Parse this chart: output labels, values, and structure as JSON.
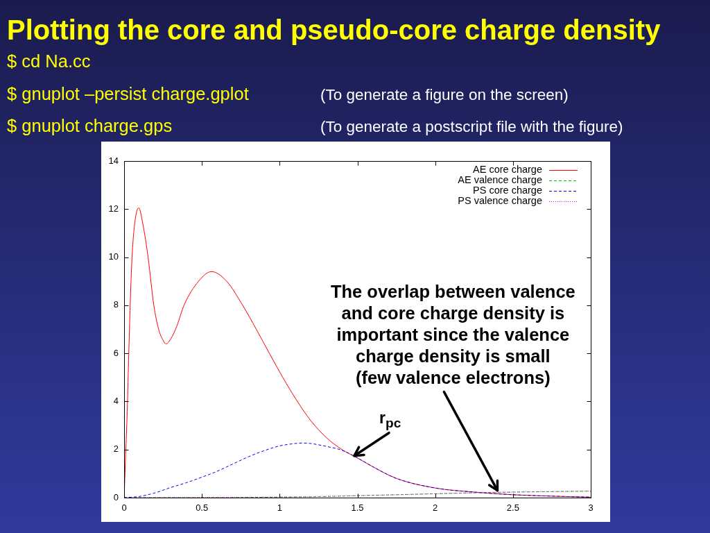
{
  "chart_data": {
    "type": "line",
    "title": "Plotting the core and pseudo-core charge density",
    "annotations": [
      "$ cd Na.cc",
      "$ gnuplot –persist charge.gplot",
      "(To generate a figure on the screen)",
      "$ gnuplot charge.gps",
      "(To generate a postscript file with the figure)",
      {
        "text": "The overlap between valence\nand core charge density is\nimportant since the valence\ncharge density is small\n(few valence electrons)",
        "x": 2.4,
        "y": 0.3
      },
      {
        "text": "r$_{pc}$",
        "x": 1.48,
        "y": 1.74
      }
    ],
    "xlim": [
      0,
      3
    ],
    "xticks": [
      0,
      0.5,
      1,
      1.5,
      2,
      2.5,
      3
    ],
    "ylim": [
      0,
      14
    ],
    "yticks": [
      0,
      2,
      4,
      6,
      8,
      10,
      12,
      14
    ],
    "grid": false,
    "legend": "top right",
    "marker": "none",
    "series": [
      {
        "name": "AE core charge",
        "color": "#ff0000",
        "line_style": "solid",
        "x": [
          0,
          0.01,
          0.02,
          0.03,
          0.039,
          0.051,
          0.07,
          0.094,
          0.12,
          0.154,
          0.191,
          0.222,
          0.25,
          0.27,
          0.3,
          0.34,
          0.385,
          0.479,
          0.562,
          0.659,
          0.762,
          0.85,
          0.934,
          1.02,
          1.114,
          1.2,
          1.3,
          1.4,
          1.5,
          1.6,
          1.75,
          2.0,
          2.25,
          2.5,
          2.75,
          3.0
        ],
        "values": [
          0,
          1.8,
          3.6,
          6,
          8,
          10,
          11.5,
          12.05,
          11.4,
          10,
          8,
          7,
          6.55,
          6.39,
          6.6,
          7.15,
          8,
          9,
          9.4,
          9,
          8,
          7,
          6,
          5,
          4,
          3.2,
          2.5,
          2.0,
          1.65,
          1.28,
          0.8,
          0.4,
          0.23,
          0.12,
          0.06,
          0.02
        ]
      },
      {
        "name": "AE valence charge",
        "color": "#00c000",
        "line_style": "dashed",
        "x": [
          0,
          0.5,
          1,
          1.25,
          1.5,
          1.75,
          2,
          2.25,
          2.5,
          2.75,
          3
        ],
        "values": [
          0,
          0,
          0.02,
          0.04,
          0.08,
          0.12,
          0.16,
          0.2,
          0.23,
          0.25,
          0.27
        ]
      },
      {
        "name": "PS core charge",
        "color": "#0000ff",
        "line_style": "dashed",
        "x": [
          0,
          0.1,
          0.2,
          0.3,
          0.4,
          0.5,
          0.6,
          0.7,
          0.8,
          0.9,
          1.0,
          1.1,
          1.15,
          1.2,
          1.3,
          1.4,
          1.5,
          1.6,
          1.75,
          2.0,
          2.25,
          2.5,
          2.75,
          3.0
        ],
        "values": [
          0,
          0.05,
          0.2,
          0.42,
          0.62,
          0.85,
          1.1,
          1.4,
          1.7,
          1.95,
          2.15,
          2.25,
          2.27,
          2.25,
          2.13,
          1.97,
          1.65,
          1.28,
          0.8,
          0.4,
          0.23,
          0.12,
          0.06,
          0.02
        ]
      },
      {
        "name": "PS valence charge",
        "color": "#ff00ff",
        "line_style": "dotted",
        "x": [
          0,
          0.5,
          1,
          1.25,
          1.5,
          1.75,
          2,
          2.25,
          2.5,
          2.75,
          3
        ],
        "values": [
          0,
          0.01,
          0.03,
          0.05,
          0.08,
          0.12,
          0.16,
          0.2,
          0.23,
          0.25,
          0.27
        ]
      }
    ]
  }
}
